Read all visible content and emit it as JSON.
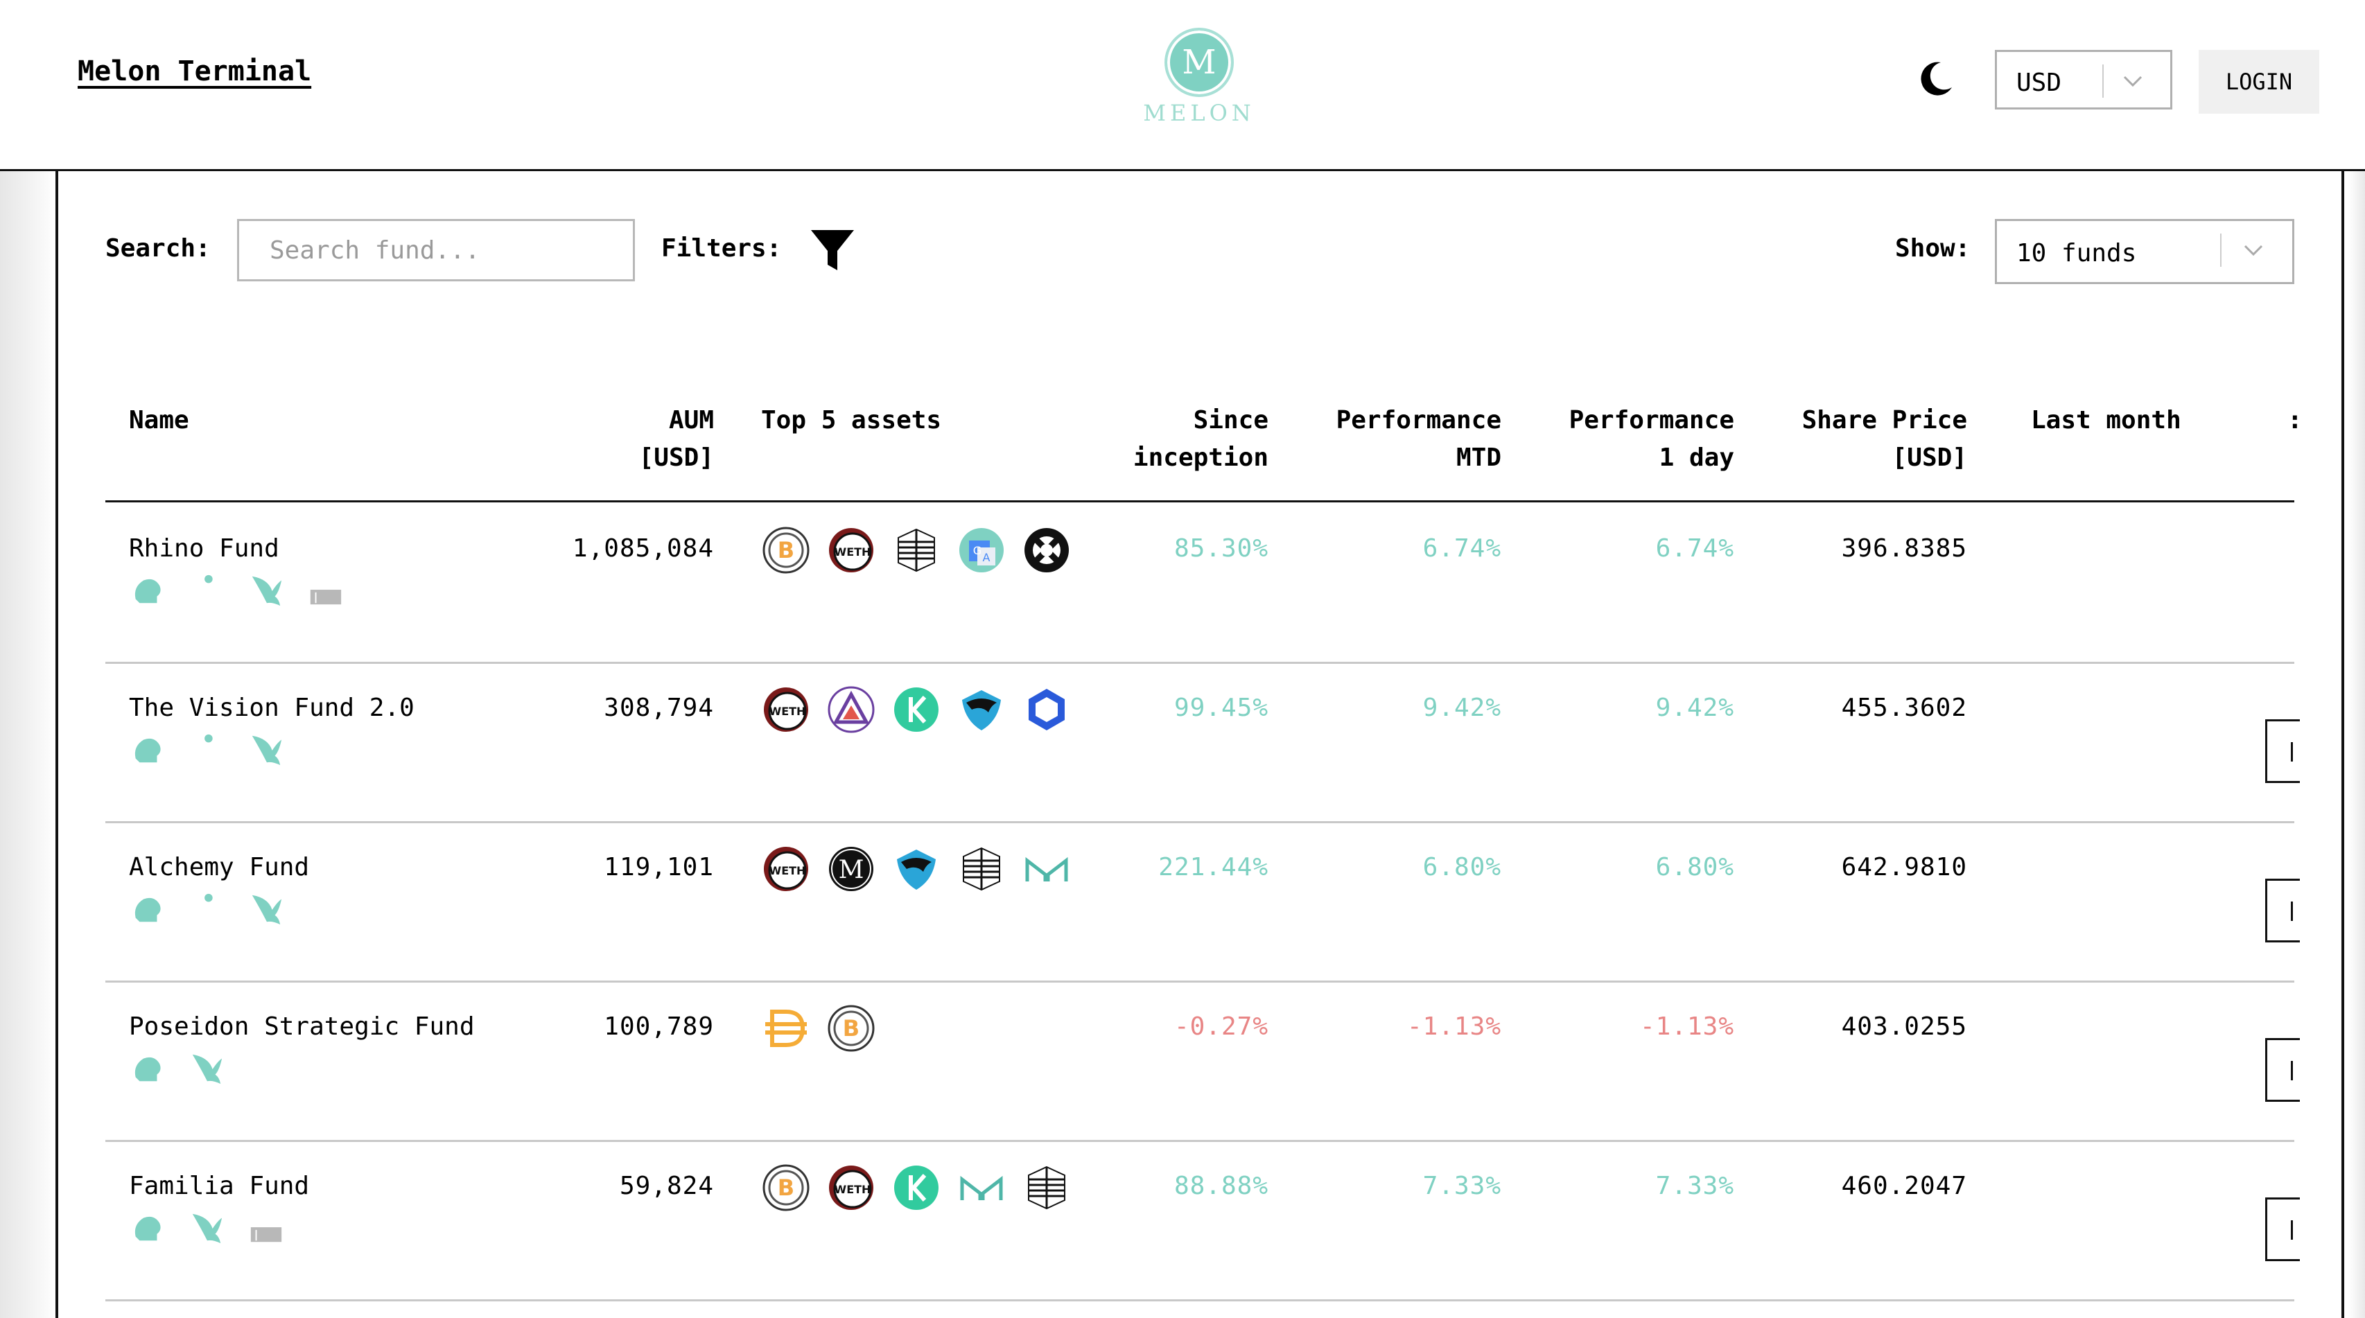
{
  "header": {
    "brand": "Melon Terminal",
    "logo_letter": "M",
    "logo_word": "MELON",
    "currency": "USD",
    "login_label": "LOGIN"
  },
  "toolbar": {
    "search_label": "Search:",
    "search_placeholder": "Search fund...",
    "filters_label": "Filters:",
    "show_label": "Show:",
    "show_value": "10 funds"
  },
  "table": {
    "headers": {
      "name": "Name",
      "aum_1": "AUM",
      "aum_2": "[USD]",
      "assets": "Top 5 assets",
      "since_1": "Since",
      "since_2": "inception",
      "mtd_1": "Performance",
      "mtd_2": "MTD",
      "day_1": "Performance",
      "day_2": "1 day",
      "price_1": "Share Price",
      "price_2": "[USD]",
      "last_month": "Last month",
      "extra": ":"
    },
    "rows": [
      {
        "name": "Rhino Fund",
        "aum": "1,085,084",
        "since": "85.30%",
        "mtd": "6.74%",
        "day": "6.74%",
        "price": "396.8385",
        "assets": [
          "bitcoin-icon",
          "weth-icon",
          "cube-stack-icon",
          "translate-icon",
          "cross-ring-icon"
        ],
        "tags": [
          "leaf-head-icon",
          "rider-icon",
          "wing-icon",
          "factory-icon"
        ],
        "trend": "up"
      },
      {
        "name": "The Vision Fund 2.0",
        "aum": "308,794",
        "since": "99.45%",
        "mtd": "9.42%",
        "day": "9.42%",
        "price": "455.3602",
        "assets": [
          "weth-icon",
          "triangle-token-icon",
          "kyber-icon",
          "shield-token-icon",
          "hexagon-link-icon"
        ],
        "tags": [
          "leaf-head-icon",
          "rider-icon",
          "wing-icon"
        ],
        "trend": "up"
      },
      {
        "name": "Alchemy Fund",
        "aum": "119,101",
        "since": "221.44%",
        "mtd": "6.80%",
        "day": "6.80%",
        "price": "642.9810",
        "assets": [
          "weth-icon",
          "melon-token-icon",
          "shield-token-icon",
          "cube-stack-icon",
          "maker-icon"
        ],
        "tags": [
          "leaf-head-icon",
          "rider-icon",
          "wing-icon"
        ],
        "trend": "up"
      },
      {
        "name": "Poseidon Strategic Fund",
        "aum": "100,789",
        "since": "-0.27%",
        "mtd": "-1.13%",
        "day": "-1.13%",
        "price": "403.0255",
        "assets": [
          "dai-icon",
          "bitcoin-icon"
        ],
        "tags": [
          "leaf-head-icon",
          "wing-icon"
        ],
        "trend": "down"
      },
      {
        "name": "Familia Fund",
        "aum": "59,824",
        "since": "88.88%",
        "mtd": "7.33%",
        "day": "7.33%",
        "price": "460.2047",
        "assets": [
          "bitcoin-icon",
          "weth-icon",
          "kyber-icon",
          "maker-icon",
          "cube-stack-icon"
        ],
        "tags": [
          "leaf-head-icon",
          "wing-icon",
          "factory-icon"
        ],
        "trend": "up"
      }
    ]
  },
  "colors": {
    "accent": "#7fd1c2",
    "negative": "#e88585",
    "bitcoin": "#f2a541",
    "dai": "#f5ac37",
    "link_blue": "#2a5ada"
  }
}
